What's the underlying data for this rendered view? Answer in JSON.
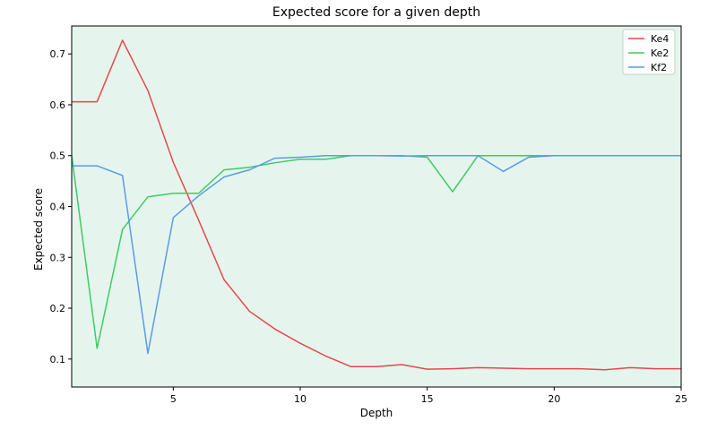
{
  "chart_data": {
    "type": "line",
    "title": "Expected score for a given depth",
    "xlabel": "Depth",
    "ylabel": "Expected score",
    "xlim": [
      1,
      25
    ],
    "ylim": [
      0.045,
      0.755
    ],
    "x_ticks": [
      5,
      10,
      15,
      20,
      25
    ],
    "y_ticks": [
      0.1,
      0.2,
      0.3,
      0.4,
      0.5,
      0.6,
      0.7
    ],
    "grid": false,
    "legend_position": "top-right",
    "plot_background": "#e5f5ee",
    "x": [
      1,
      2,
      3,
      4,
      5,
      6,
      7,
      8,
      9,
      10,
      11,
      12,
      13,
      14,
      15,
      16,
      17,
      18,
      19,
      20,
      21,
      22,
      23,
      24,
      25
    ],
    "series": [
      {
        "name": "Ke4",
        "color": "#e8474a",
        "values": [
          0.606,
          0.606,
          0.727,
          0.628,
          0.487,
          0.373,
          0.256,
          0.194,
          0.159,
          0.131,
          0.106,
          0.085,
          0.085,
          0.089,
          0.08,
          0.081,
          0.083,
          0.082,
          0.081,
          0.081,
          0.081,
          0.079,
          0.083,
          0.081,
          0.081
        ]
      },
      {
        "name": "Ke2",
        "color": "#3ecb62",
        "values": [
          0.5,
          0.121,
          0.355,
          0.419,
          0.426,
          0.426,
          0.472,
          0.477,
          0.486,
          0.493,
          0.493,
          0.5,
          0.5,
          0.5,
          0.497,
          0.429,
          0.5,
          0.5,
          0.5,
          0.5,
          0.5,
          0.5,
          0.5,
          0.5,
          0.5
        ]
      },
      {
        "name": "Kf2",
        "color": "#5b9be8",
        "values": [
          0.48,
          0.48,
          0.461,
          0.111,
          0.378,
          0.421,
          0.458,
          0.472,
          0.495,
          0.497,
          0.5,
          0.5,
          0.5,
          0.499,
          0.5,
          0.5,
          0.5,
          0.469,
          0.497,
          0.5,
          0.5,
          0.5,
          0.5,
          0.5,
          0.5
        ]
      }
    ]
  }
}
